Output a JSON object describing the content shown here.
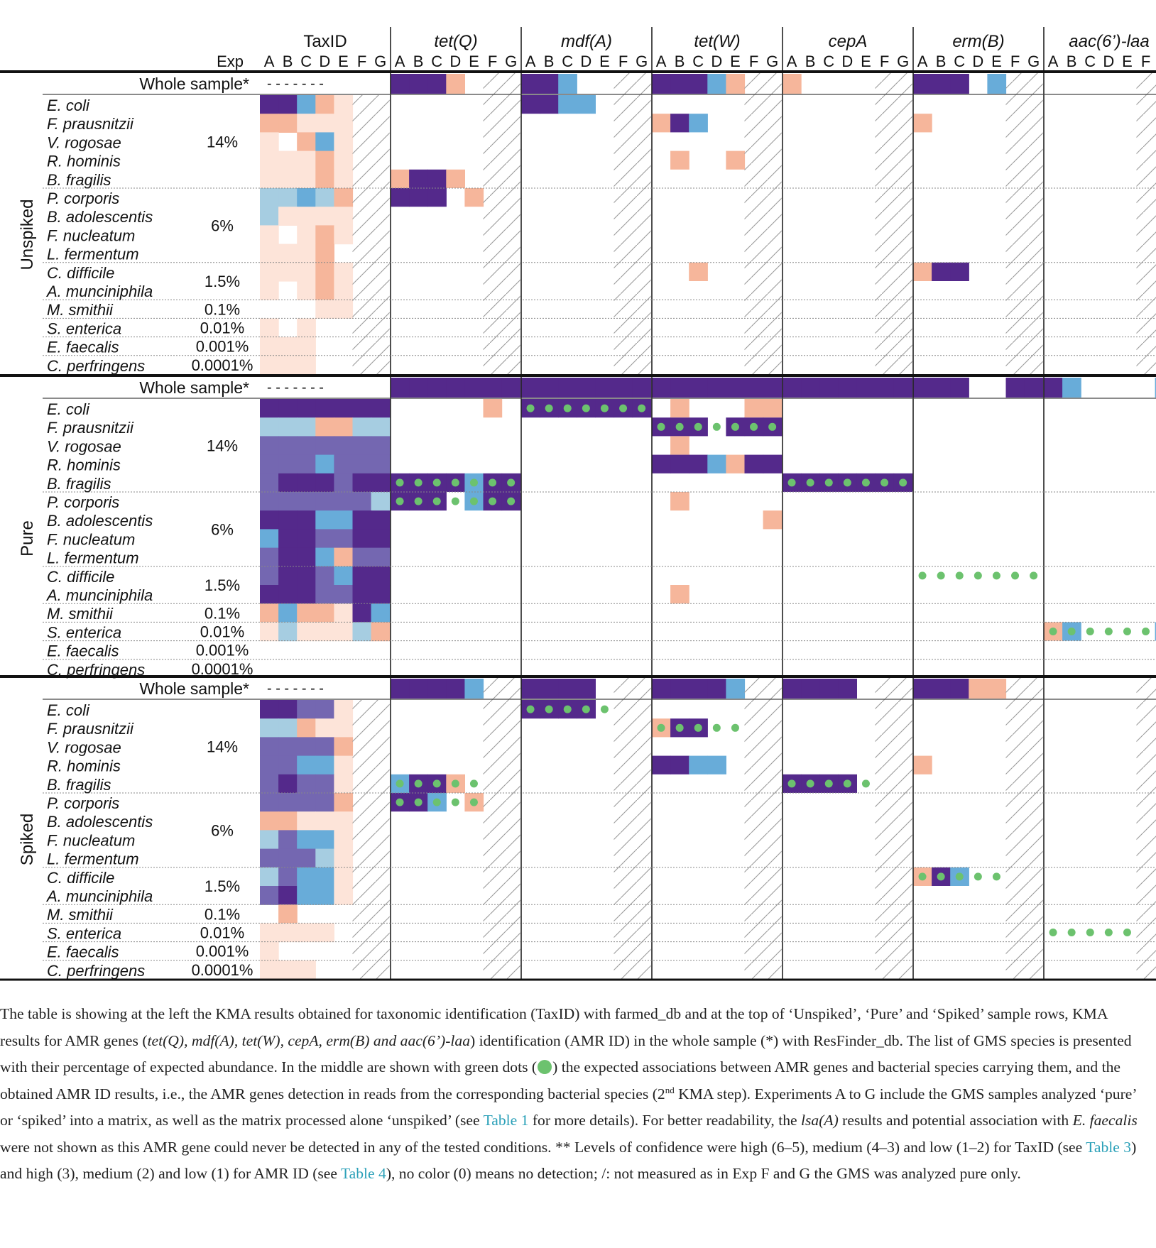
{
  "colors": {
    "high": "#54298b",
    "mid": "#7467b1",
    "light_blue": "#a6cde1",
    "blue": "#68acd9",
    "salmon": "#f6b69b",
    "pale": "#fde4d9",
    "dot": "#6cc26e",
    "hatch": "#999999"
  },
  "header": {
    "taxid_label": "TaxID",
    "exp_label": "Exp",
    "experiments": [
      "A",
      "B",
      "C",
      "D",
      "E",
      "F",
      "G"
    ],
    "genes": [
      "tet(Q)",
      "mdf(A)",
      "tet(W)",
      "cepA",
      "erm(B)",
      "aac(6’)-laa"
    ]
  },
  "species": [
    {
      "name": "E. coli"
    },
    {
      "name": "F. prausnitzii"
    },
    {
      "name": "V. rogosae"
    },
    {
      "name": "R. hominis"
    },
    {
      "name": "B. fragilis"
    },
    {
      "name": "P. corporis"
    },
    {
      "name": "B. adolescentis"
    },
    {
      "name": "F. nucleatum"
    },
    {
      "name": "L. fermentum"
    },
    {
      "name": "C. difficile"
    },
    {
      "name": "A. munciniphila"
    },
    {
      "name": "M. smithii"
    },
    {
      "name": "S. enterica"
    },
    {
      "name": "E. faecalis"
    },
    {
      "name": "C. perfringens"
    }
  ],
  "abundance_groups": [
    {
      "label": "14%",
      "rows": [
        0,
        4
      ]
    },
    {
      "label": "6%",
      "rows": [
        5,
        8
      ]
    },
    {
      "label": "1.5%",
      "rows": [
        9,
        10
      ]
    },
    {
      "label": "0.1%",
      "rows": [
        11,
        11
      ]
    },
    {
      "label": "0.01%",
      "rows": [
        12,
        12
      ]
    },
    {
      "label": "0.001%",
      "rows": [
        13,
        13
      ]
    },
    {
      "label": "0.0001%",
      "rows": [
        14,
        14
      ]
    }
  ],
  "whole_sample_label": "Whole sample*",
  "whole_sample_taxid": "- - - - - - -",
  "sections": [
    {
      "name": "Unspiked",
      "hatch_exps": [
        5,
        6
      ],
      "whole": [
        [
          "H",
          "H",
          "H",
          "S",
          "",
          "",
          ""
        ],
        [
          "H",
          "H",
          "B",
          "",
          "",
          "",
          ""
        ],
        [
          "H",
          "H",
          "H",
          "B",
          "S",
          "",
          ""
        ],
        [
          "S",
          "",
          "",
          "",
          "",
          "",
          ""
        ],
        [
          "H",
          "H",
          "H",
          "",
          "B",
          "",
          ""
        ],
        [
          "",
          "",
          "",
          "",
          "",
          "",
          ""
        ]
      ],
      "taxid": [
        [
          "H",
          "H",
          "B",
          "S",
          "P",
          "",
          ""
        ],
        [
          "S",
          "S",
          "P",
          "P",
          "P",
          "",
          ""
        ],
        [
          "P",
          "",
          "S",
          "B",
          "P",
          "",
          ""
        ],
        [
          "P",
          "P",
          "P",
          "S",
          "P",
          "",
          ""
        ],
        [
          "P",
          "P",
          "P",
          "S",
          "P",
          "",
          ""
        ],
        [
          "L",
          "L",
          "B",
          "L",
          "S",
          "",
          ""
        ],
        [
          "L",
          "P",
          "P",
          "P",
          "P",
          "",
          ""
        ],
        [
          "P",
          "",
          "P",
          "S",
          "P",
          "",
          ""
        ],
        [
          "P",
          "P",
          "P",
          "S",
          "",
          "",
          ""
        ],
        [
          "P",
          "P",
          "P",
          "S",
          "P",
          "",
          ""
        ],
        [
          "P",
          "",
          "P",
          "S",
          "P",
          "",
          ""
        ],
        [
          "",
          "",
          "",
          "P",
          "P",
          "",
          ""
        ],
        [
          "P",
          "",
          "P",
          "",
          "",
          "",
          ""
        ],
        [
          "P",
          "P",
          "P",
          "",
          "",
          "",
          ""
        ],
        [
          "P",
          "P",
          "P",
          "",
          "",
          "",
          ""
        ]
      ],
      "genes": [
        {
          "cells": {
            "4": [
              "S",
              "H",
              "H",
              "S",
              "",
              "",
              ""
            ],
            "5": [
              "H",
              "H",
              "H",
              "",
              "S",
              "",
              ""
            ]
          },
          "dots": {}
        },
        {
          "cells": {
            "0": [
              "H",
              "H",
              "B",
              "B",
              "",
              "",
              ""
            ]
          },
          "dots": {}
        },
        {
          "cells": {
            "1": [
              "S",
              "H",
              "B",
              "",
              "",
              "",
              ""
            ],
            "3": [
              "",
              "S",
              "",
              "",
              "S",
              "",
              ""
            ],
            "9": [
              "",
              "",
              "S",
              "",
              "",
              "",
              ""
            ]
          },
          "dots": {}
        },
        {
          "cells": {},
          "dots": {}
        },
        {
          "cells": {
            "1": [
              "S",
              "",
              "",
              "",
              "",
              "",
              ""
            ],
            "9": [
              "S",
              "H",
              "H",
              "",
              "",
              "",
              ""
            ]
          },
          "dots": {}
        },
        {
          "cells": {},
          "dots": {}
        }
      ]
    },
    {
      "name": "Pure",
      "hatch_exps": [],
      "whole": [
        [
          "H",
          "H",
          "H",
          "H",
          "H",
          "H",
          "H"
        ],
        [
          "H",
          "H",
          "H",
          "H",
          "H",
          "H",
          "H"
        ],
        [
          "H",
          "H",
          "H",
          "H",
          "H",
          "H",
          "H"
        ],
        [
          "H",
          "H",
          "H",
          "H",
          "H",
          "H",
          "H"
        ],
        [
          "H",
          "H",
          "H",
          "",
          "",
          "H",
          "H"
        ],
        [
          "H",
          "B",
          "",
          "",
          "",
          "",
          "B"
        ]
      ],
      "taxid": [
        [
          "H",
          "H",
          "H",
          "H",
          "H",
          "H",
          "H"
        ],
        [
          "L",
          "L",
          "L",
          "S",
          "S",
          "L",
          "L"
        ],
        [
          "M",
          "M",
          "M",
          "M",
          "M",
          "M",
          "M"
        ],
        [
          "M",
          "M",
          "M",
          "B",
          "M",
          "M",
          "M"
        ],
        [
          "M",
          "H",
          "H",
          "H",
          "M",
          "H",
          "H"
        ],
        [
          "M",
          "M",
          "M",
          "M",
          "M",
          "M",
          "L"
        ],
        [
          "H",
          "H",
          "H",
          "B",
          "B",
          "H",
          "H"
        ],
        [
          "B",
          "H",
          "H",
          "M",
          "M",
          "H",
          "H"
        ],
        [
          "M",
          "H",
          "H",
          "B",
          "S",
          "M",
          "M"
        ],
        [
          "M",
          "H",
          "H",
          "M",
          "B",
          "H",
          "H"
        ],
        [
          "H",
          "H",
          "H",
          "M",
          "M",
          "H",
          "H"
        ],
        [
          "S",
          "B",
          "S",
          "S",
          "P",
          "H",
          "B"
        ],
        [
          "P",
          "L",
          "P",
          "P",
          "P",
          "L",
          "S"
        ],
        [
          "",
          "",
          "",
          "",
          "",
          "",
          ""
        ],
        [
          "",
          "",
          "",
          "",
          "",
          "",
          ""
        ]
      ],
      "genes": [
        {
          "cells": {
            "0": [
              "",
              "",
              "",
              "",
              "",
              "S",
              ""
            ],
            "4": [
              "H",
              "H",
              "H",
              "H",
              "B",
              "H",
              "H"
            ],
            "5": [
              "H",
              "H",
              "H",
              "",
              "B",
              "H",
              "H"
            ]
          },
          "dots": {
            "4": [
              0,
              1,
              2,
              3,
              4,
              5,
              6
            ],
            "5": [
              0,
              1,
              2,
              3,
              4,
              5,
              6
            ]
          }
        },
        {
          "cells": {
            "0": [
              "H",
              "H",
              "H",
              "H",
              "H",
              "H",
              "H"
            ]
          },
          "dots": {
            "0": [
              0,
              1,
              2,
              3,
              4,
              5,
              6
            ]
          }
        },
        {
          "cells": {
            "0": [
              "",
              "S",
              "",
              "",
              "",
              "S",
              "S"
            ],
            "1": [
              "H",
              "H",
              "H",
              "",
              "H",
              "H",
              "H"
            ],
            "2": [
              "",
              "S",
              "",
              "",
              "",
              "",
              ""
            ],
            "3": [
              "H",
              "H",
              "H",
              "B",
              "S",
              "H",
              "H"
            ],
            "5": [
              "",
              "S",
              "",
              "",
              "",
              "",
              ""
            ],
            "6": [
              "",
              "",
              "",
              "",
              "",
              "",
              "S"
            ],
            "10": [
              "",
              "S",
              "",
              "",
              "",
              "",
              ""
            ]
          },
          "dots": {
            "1": [
              0,
              1,
              2,
              3,
              4,
              5,
              6
            ]
          }
        },
        {
          "cells": {
            "4": [
              "H",
              "H",
              "H",
              "H",
              "H",
              "H",
              "H"
            ]
          },
          "dots": {
            "4": [
              0,
              1,
              2,
              3,
              4,
              5,
              6
            ]
          }
        },
        {
          "cells": {},
          "dots": {
            "9": [
              0,
              1,
              2,
              3,
              4,
              5,
              6
            ]
          }
        },
        {
          "cells": {
            "12": [
              "S",
              "B",
              "",
              "",
              "",
              "",
              "B"
            ]
          },
          "dots": {
            "12": [
              0,
              1,
              2,
              3,
              4,
              5,
              6
            ]
          }
        }
      ]
    },
    {
      "name": "Spiked",
      "hatch_exps": [
        5,
        6
      ],
      "whole": [
        [
          "H",
          "H",
          "H",
          "H",
          "B",
          "",
          ""
        ],
        [
          "H",
          "H",
          "H",
          "H",
          "",
          "",
          ""
        ],
        [
          "H",
          "H",
          "H",
          "H",
          "B",
          "",
          ""
        ],
        [
          "H",
          "H",
          "H",
          "H",
          "",
          "",
          ""
        ],
        [
          "H",
          "H",
          "H",
          "S",
          "S",
          "",
          ""
        ],
        [
          "",
          "",
          "",
          "",
          "",
          "",
          ""
        ]
      ],
      "taxid": [
        [
          "H",
          "H",
          "M",
          "M",
          "P",
          "",
          ""
        ],
        [
          "L",
          "L",
          "S",
          "P",
          "P",
          "",
          ""
        ],
        [
          "M",
          "M",
          "M",
          "M",
          "S",
          "",
          ""
        ],
        [
          "M",
          "M",
          "B",
          "B",
          "P",
          "",
          ""
        ],
        [
          "M",
          "H",
          "M",
          "M",
          "P",
          "",
          ""
        ],
        [
          "M",
          "M",
          "M",
          "M",
          "S",
          "",
          ""
        ],
        [
          "S",
          "S",
          "P",
          "P",
          "P",
          "",
          ""
        ],
        [
          "L",
          "M",
          "B",
          "B",
          "P",
          "",
          ""
        ],
        [
          "M",
          "M",
          "M",
          "L",
          "P",
          "",
          ""
        ],
        [
          "L",
          "M",
          "B",
          "B",
          "P",
          "",
          ""
        ],
        [
          "M",
          "H",
          "B",
          "B",
          "P",
          "",
          ""
        ],
        [
          "",
          "S",
          "",
          "",
          "",
          "",
          ""
        ],
        [
          "P",
          "P",
          "P",
          "P",
          "",
          "",
          ""
        ],
        [
          "P",
          "",
          "",
          "",
          "",
          "",
          ""
        ],
        [
          "P",
          "P",
          "P",
          "",
          "",
          "",
          ""
        ]
      ],
      "genes": [
        {
          "cells": {
            "4": [
              "B",
              "H",
              "H",
              "S",
              "",
              "",
              ""
            ],
            "5": [
              "H",
              "H",
              "B",
              "",
              "S",
              "",
              ""
            ]
          },
          "dots": {
            "4": [
              0,
              1,
              2,
              3,
              4
            ],
            "5": [
              0,
              1,
              2,
              3,
              4
            ]
          }
        },
        {
          "cells": {
            "0": [
              "H",
              "H",
              "H",
              "H",
              "",
              "",
              ""
            ]
          },
          "dots": {
            "0": [
              0,
              1,
              2,
              3,
              4
            ]
          }
        },
        {
          "cells": {
            "1": [
              "S",
              "H",
              "H",
              "",
              "",
              "",
              ""
            ],
            "3": [
              "H",
              "H",
              "B",
              "B",
              "",
              "",
              ""
            ]
          },
          "dots": {
            "1": [
              0,
              1,
              2,
              3,
              4
            ]
          }
        },
        {
          "cells": {
            "4": [
              "H",
              "H",
              "H",
              "H",
              "",
              "",
              ""
            ]
          },
          "dots": {
            "4": [
              0,
              1,
              2,
              3,
              4
            ]
          }
        },
        {
          "cells": {
            "3": [
              "S",
              "",
              "",
              "",
              "",
              "",
              ""
            ],
            "9": [
              "S",
              "H",
              "B",
              "",
              "",
              "",
              ""
            ]
          },
          "dots": {
            "9": [
              0,
              1,
              2,
              3,
              4
            ]
          }
        },
        {
          "cells": {},
          "dots": {
            "12": [
              0,
              1,
              2,
              3,
              4
            ]
          }
        }
      ]
    }
  ],
  "caption": {
    "p1": "The table is showing at the left the KMA results obtained for taxonomic identification (TaxID) with farmed_db and at the top of ‘Unspiked’, ‘Pure’ and ‘Spiked’ sample rows, KMA results for AMR genes (",
    "p1_genes": "tet(Q), mdf(A), tet(W), cepA, erm(B) and aac(6’)-laa",
    "p2": ") identification (AMR ID) in the whole sample (*) with ResFinder_db. The list of GMS species is presented with their percentage of expected abundance. In the middle are shown with green dots (",
    "p3": ") the expected associations between AMR genes and bacterial species carrying them, and the obtained AMR ID results, i.e., the AMR genes detection in reads from the corresponding bacterial species (2",
    "p3_sup": "nd",
    "p4": " KMA step). Experiments A to G include the GMS samples analyzed ‘pure’ or ‘spiked’ into a matrix, as well as the matrix processed alone ‘unspiked’ (see ",
    "link1": "Table 1",
    "p5": " for more details). For better readability, the ",
    "p5_gene": "lsa(A)",
    "p6": " results and potential association with ",
    "p6_sp": "E. faecalis",
    "p7": " were not shown as this AMR gene could never be detected in any of the tested conditions. ** Levels of confidence were high (6–5), medium (4–3) and low (1–2) for TaxID (see ",
    "link2": "Table 3",
    "p8": ") and high (3), medium (2) and low (1) for AMR ID (see ",
    "link3": "Table 4",
    "p9": "), no color (0) means no detection; /: not measured as in Exp F and G the GMS was analyzed pure only."
  }
}
